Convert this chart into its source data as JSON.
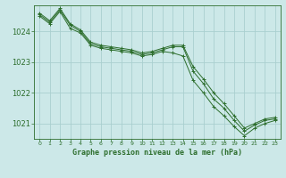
{
  "background_color": "#cce8e8",
  "grid_color": "#aacfcf",
  "line_color": "#2d6e2d",
  "xlabel": "Graphe pression niveau de la mer (hPa)",
  "xlabel_fontsize": 6.0,
  "ytick_fontsize": 6.0,
  "xtick_fontsize": 4.5,
  "yticks": [
    1021,
    1022,
    1023,
    1024
  ],
  "xticks": [
    0,
    1,
    2,
    3,
    4,
    5,
    6,
    7,
    8,
    9,
    10,
    11,
    12,
    13,
    14,
    15,
    16,
    17,
    18,
    19,
    20,
    21,
    22,
    23
  ],
  "ylim": [
    1020.5,
    1024.85
  ],
  "xlim": [
    -0.5,
    23.5
  ],
  "series": [
    [
      1024.6,
      1024.35,
      1024.75,
      1024.25,
      1024.05,
      1023.65,
      1023.55,
      1023.5,
      1023.45,
      1023.4,
      1023.3,
      1023.35,
      1023.45,
      1023.55,
      1023.55,
      1022.85,
      1022.45,
      1022.0,
      1021.65,
      1021.25,
      1020.85,
      1021.0,
      1021.15,
      1021.2
    ],
    [
      1024.55,
      1024.3,
      1024.7,
      1024.2,
      1024.0,
      1023.6,
      1023.5,
      1023.45,
      1023.4,
      1023.35,
      1023.25,
      1023.3,
      1023.4,
      1023.5,
      1023.5,
      1022.7,
      1022.3,
      1021.8,
      1021.5,
      1021.1,
      1020.75,
      1020.95,
      1021.1,
      1021.15
    ],
    [
      1024.5,
      1024.25,
      1024.65,
      1024.1,
      1023.95,
      1023.55,
      1023.45,
      1023.4,
      1023.35,
      1023.3,
      1023.2,
      1023.25,
      1023.35,
      1023.3,
      1023.2,
      1022.4,
      1022.0,
      1021.55,
      1021.25,
      1020.9,
      1020.6,
      1020.85,
      1021.0,
      1021.1
    ]
  ]
}
